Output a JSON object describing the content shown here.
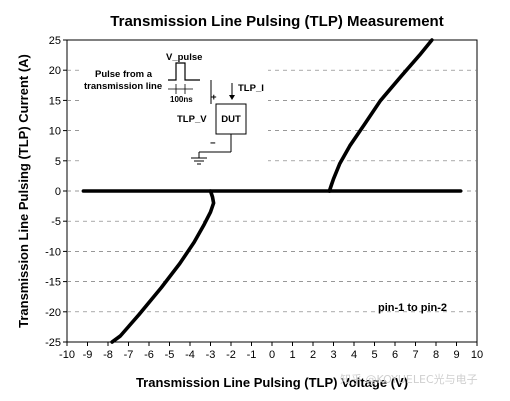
{
  "chart_data": {
    "type": "line",
    "title": "Transmission Line Pulsing (TLP) Measurement",
    "xlabel": "Transmission Line Pulsing (TLP) Voltage (V)",
    "ylabel": "Transmission Line Pulsing (TLP) Current (A)",
    "xlim": [
      -10,
      10
    ],
    "ylim": [
      -25,
      25
    ],
    "x_ticks": [
      -10,
      -9,
      -8,
      -7,
      -6,
      -5,
      -4,
      -3,
      -2,
      -1,
      0,
      1,
      2,
      3,
      4,
      5,
      6,
      7,
      8,
      9,
      10
    ],
    "y_ticks": [
      -25,
      -20,
      -15,
      -10,
      -5,
      0,
      5,
      10,
      15,
      20,
      25
    ],
    "grid": "horizontal dashed",
    "annotation": "pin-1 to pin-2",
    "series": [
      {
        "name": "",
        "color": "#000000",
        "x": [
          -9.2,
          -3.0,
          -2.9,
          -2.85,
          -3.0,
          -3.3,
          -3.8,
          -4.5,
          -5.4,
          -6.5,
          -7.4,
          -7.8
        ],
        "y": [
          0.0,
          0.0,
          -1.0,
          -2.0,
          -3.5,
          -5.5,
          -8.5,
          -12.0,
          -16.0,
          -20.5,
          -24.0,
          -25.0
        ]
      },
      {
        "name": "",
        "color": "#000000",
        "x": [
          -3.0,
          2.8
        ],
        "y": [
          0.0,
          0.0
        ]
      },
      {
        "name": "",
        "color": "#000000",
        "x": [
          2.8,
          2.9,
          3.0,
          3.3,
          3.8,
          4.5,
          5.3,
          6.3,
          7.2,
          7.8
        ],
        "y": [
          0.0,
          1.0,
          2.0,
          4.5,
          7.5,
          11.0,
          15.0,
          19.0,
          22.5,
          25.0
        ]
      },
      {
        "name": "",
        "color": "#000000",
        "x": [
          2.8,
          9.2
        ],
        "y": [
          0.0,
          0.0
        ]
      }
    ],
    "inset": {
      "v_pulse": "V_pulse",
      "source_line1": "Pulse from a",
      "source_line2": "transmission line",
      "width": "100ns",
      "tlp_i": "TLP_I",
      "tlp_v": "TLP_V",
      "dut": "DUT",
      "plus": "+",
      "minus": "−"
    }
  },
  "watermark": "知乎 @KOYUELEC光与电子"
}
